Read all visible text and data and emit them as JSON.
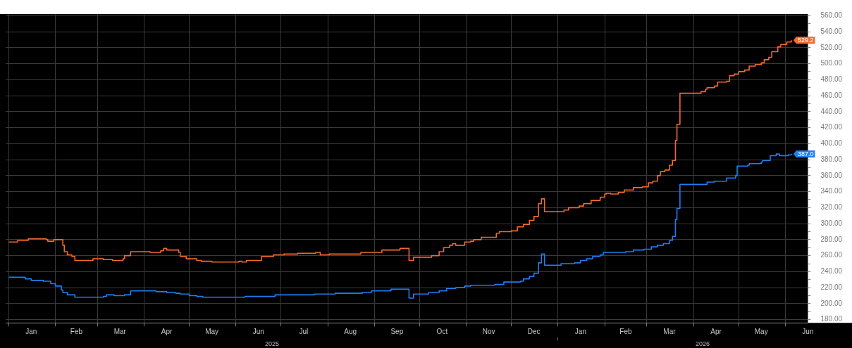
{
  "chart_data": {
    "type": "step",
    "xlim": [
      "2024-12-30",
      "2026-06-16"
    ],
    "xticks": [
      {
        "value": "2025-01-01",
        "label": null
      },
      {
        "value": "2025-01-16",
        "label": "Jan"
      },
      {
        "value": "2025-02-01",
        "label": null
      },
      {
        "value": "2025-02-15",
        "label": "Feb"
      },
      {
        "value": "2025-03-01",
        "label": null
      },
      {
        "value": "2025-03-16",
        "label": "Mar"
      },
      {
        "value": "2025-04-01",
        "label": null
      },
      {
        "value": "2025-04-16",
        "label": "Apr"
      },
      {
        "value": "2025-05-01",
        "label": null
      },
      {
        "value": "2025-05-16",
        "label": "May"
      },
      {
        "value": "2025-06-01",
        "label": null
      },
      {
        "value": "2025-06-16",
        "label": "Jun"
      },
      {
        "value": "2025-07-01",
        "label": null
      },
      {
        "value": "2025-07-16",
        "label": "Jul"
      },
      {
        "value": "2025-08-01",
        "label": null
      },
      {
        "value": "2025-08-16",
        "label": "Aug"
      },
      {
        "value": "2025-09-01",
        "label": null
      },
      {
        "value": "2025-09-16",
        "label": "Sep"
      },
      {
        "value": "2025-10-01",
        "label": null
      },
      {
        "value": "2025-10-16",
        "label": "Oct"
      },
      {
        "value": "2025-11-01",
        "label": null
      },
      {
        "value": "2025-11-16",
        "label": "Nov"
      },
      {
        "value": "2025-12-01",
        "label": null
      },
      {
        "value": "2025-12-16",
        "label": "Dec"
      },
      {
        "value": "2026-01-01",
        "label": null
      },
      {
        "value": "2026-01-16",
        "label": "Jan"
      },
      {
        "value": "2026-02-01",
        "label": null
      },
      {
        "value": "2026-02-15",
        "label": "Feb"
      },
      {
        "value": "2026-03-01",
        "label": null
      },
      {
        "value": "2026-03-16",
        "label": "Mar"
      },
      {
        "value": "2026-04-01",
        "label": null
      },
      {
        "value": "2026-04-16",
        "label": "Apr"
      },
      {
        "value": "2026-05-01",
        "label": null
      },
      {
        "value": "2026-05-16",
        "label": "May"
      },
      {
        "value": "2026-06-01",
        "label": null
      },
      {
        "value": "2026-06-16",
        "label": "Jun"
      }
    ],
    "ylim": [
      176,
      562
    ],
    "yticks": [
      {
        "value": 180,
        "label": "180.00"
      },
      {
        "value": 190,
        "label": null
      },
      {
        "value": 200,
        "label": "200.00"
      },
      {
        "value": 210,
        "label": null
      },
      {
        "value": 220,
        "label": "220.00"
      },
      {
        "value": 230,
        "label": null
      },
      {
        "value": 240,
        "label": "240.00"
      },
      {
        "value": 250,
        "label": null
      },
      {
        "value": 260,
        "label": "260.00"
      },
      {
        "value": 270,
        "label": null
      },
      {
        "value": 280,
        "label": "280.00"
      },
      {
        "value": 290,
        "label": null
      },
      {
        "value": 300,
        "label": "300.00"
      },
      {
        "value": 310,
        "label": null
      },
      {
        "value": 320,
        "label": "320.00"
      },
      {
        "value": 330,
        "label": null
      },
      {
        "value": 340,
        "label": "340.00"
      },
      {
        "value": 350,
        "label": null
      },
      {
        "value": 360,
        "label": "360.00"
      },
      {
        "value": 370,
        "label": null
      },
      {
        "value": 380,
        "label": "380.00"
      },
      {
        "value": 390,
        "label": null
      },
      {
        "value": 400,
        "label": "400.00"
      },
      {
        "value": 410,
        "label": null
      },
      {
        "value": 420,
        "label": "420.00"
      },
      {
        "value": 430,
        "label": null
      },
      {
        "value": 440,
        "label": "440.00"
      },
      {
        "value": 450,
        "label": null
      },
      {
        "value": 460,
        "label": "460.00"
      },
      {
        "value": 470,
        "label": null
      },
      {
        "value": 480,
        "label": "480.00"
      },
      {
        "value": 490,
        "label": null
      },
      {
        "value": 500,
        "label": "500.00"
      },
      {
        "value": 510,
        "label": null
      },
      {
        "value": 520,
        "label": "520.00"
      },
      {
        "value": 530,
        "label": null
      },
      {
        "value": 540,
        "label": "540.00"
      },
      {
        "value": 550,
        "label": null
      },
      {
        "value": 560,
        "label": "560.00"
      }
    ],
    "grid": true,
    "legend": false,
    "x2lim": [
      "2024-12-30",
      "2026-06-16"
    ],
    "x2ticks": [
      {
        "value": "2025-06-25",
        "label": "2025"
      },
      {
        "value": "2026-01-01",
        "label": null
      },
      {
        "value": "2026-04-07",
        "label": "2026"
      }
    ],
    "series": [
      {
        "color": "#f26a2e",
        "x": [
          "2025-01-01",
          "2025-01-07",
          "2025-01-14",
          "2025-01-26",
          "2025-01-27",
          "2025-01-31",
          "2025-02-06",
          "2025-02-07",
          "2025-02-09",
          "2025-02-12",
          "2025-02-14",
          "2025-02-26",
          "2025-03-05",
          "2025-03-11",
          "2025-03-18",
          "2025-03-19",
          "2025-03-23",
          "2025-04-05",
          "2025-04-12",
          "2025-04-14",
          "2025-04-16",
          "2025-04-24",
          "2025-04-25",
          "2025-04-29",
          "2025-05-06",
          "2025-05-09",
          "2025-05-16",
          "2025-06-03",
          "2025-06-05",
          "2025-06-08",
          "2025-06-18",
          "2025-06-26",
          "2025-07-03",
          "2025-07-12",
          "2025-07-24",
          "2025-07-27",
          "2025-08-02",
          "2025-08-23",
          "2025-09-06",
          "2025-09-18",
          "2025-09-24",
          "2025-09-27",
          "2025-10-07",
          "2025-10-09",
          "2025-10-14",
          "2025-10-17",
          "2025-10-21",
          "2025-10-23",
          "2025-10-25",
          "2025-10-31",
          "2025-11-04",
          "2025-11-06",
          "2025-11-11",
          "2025-11-21",
          "2025-11-23",
          "2025-12-01",
          "2025-12-05",
          "2025-12-09",
          "2025-12-13",
          "2025-12-16",
          "2025-12-19",
          "2025-12-21",
          "2025-12-23",
          "2026-01-05",
          "2026-01-08",
          "2026-01-15",
          "2026-01-18",
          "2026-01-23",
          "2026-01-29",
          "2026-02-01",
          "2026-02-02",
          "2026-02-05",
          "2026-02-10",
          "2026-02-14",
          "2026-02-20",
          "2026-02-26",
          "2026-03-02",
          "2026-03-05",
          "2026-03-08",
          "2026-03-10",
          "2026-03-13",
          "2026-03-16",
          "2026-03-18",
          "2026-03-20",
          "2026-03-21",
          "2026-03-23",
          "2026-04-06",
          "2026-04-09",
          "2026-04-10",
          "2026-04-15",
          "2026-04-17",
          "2026-04-23",
          "2026-04-25",
          "2026-04-28",
          "2026-05-01",
          "2026-05-05",
          "2026-05-08",
          "2026-05-12",
          "2026-05-16",
          "2026-05-18",
          "2026-05-21",
          "2026-05-23",
          "2026-05-27",
          "2026-05-29",
          "2026-06-02",
          "2026-06-05"
        ],
        "values": [
          277,
          279,
          281,
          280,
          278,
          280,
          273,
          265,
          261,
          259,
          254,
          256,
          255,
          254,
          256,
          260,
          265,
          264,
          266,
          269,
          267,
          264,
          259,
          256,
          254,
          253,
          252,
          253,
          252,
          254,
          259,
          261,
          262,
          263,
          264,
          261,
          262,
          264,
          267,
          269,
          254,
          258,
          258,
          260,
          265,
          270,
          273,
          275,
          273,
          277,
          278,
          280,
          283,
          288,
          290,
          291,
          296,
          299,
          304,
          309,
          325,
          331,
          315,
          317,
          320,
          322,
          325,
          329,
          333,
          337,
          338,
          337,
          339,
          342,
          345,
          346,
          351,
          353,
          360,
          365,
          367,
          373,
          379,
          404,
          424,
          463,
          465,
          468,
          470,
          472,
          477,
          478,
          485,
          487,
          490,
          492,
          497,
          499,
          501,
          505,
          508,
          515,
          521,
          524,
          527,
          529.2
        ],
        "value_labels": [
          null,
          null,
          null,
          null,
          null,
          null,
          null,
          null,
          null,
          null,
          null,
          null,
          null,
          null,
          null,
          null,
          null,
          null,
          null,
          null,
          null,
          null,
          null,
          null,
          null,
          null,
          null,
          null,
          null,
          null,
          null,
          null,
          null,
          null,
          null,
          null,
          null,
          null,
          null,
          null,
          null,
          null,
          null,
          null,
          null,
          null,
          null,
          null,
          null,
          null,
          null,
          null,
          null,
          null,
          null,
          null,
          null,
          null,
          null,
          null,
          null,
          null,
          null,
          null,
          null,
          null,
          null,
          null,
          null,
          null,
          null,
          null,
          null,
          null,
          null,
          null,
          null,
          null,
          null,
          null,
          null,
          null,
          null,
          null,
          null,
          null,
          null,
          null,
          null,
          null,
          null,
          null,
          null,
          null,
          null,
          null,
          null,
          null,
          null,
          null,
          null,
          null,
          null,
          null,
          null,
          "529.2"
        ]
      },
      {
        "color": "#1f7ff0",
        "x": [
          "2025-01-01",
          "2025-01-12",
          "2025-01-16",
          "2025-01-24",
          "2025-01-29",
          "2025-02-01",
          "2025-02-05",
          "2025-02-06",
          "2025-02-09",
          "2025-02-14",
          "2025-02-27",
          "2025-03-05",
          "2025-03-07",
          "2025-03-12",
          "2025-03-19",
          "2025-03-23",
          "2025-04-09",
          "2025-04-16",
          "2025-04-22",
          "2025-04-25",
          "2025-05-01",
          "2025-05-06",
          "2025-05-10",
          "2025-05-31",
          "2025-06-07",
          "2025-06-14",
          "2025-06-27",
          "2025-07-23",
          "2025-08-06",
          "2025-08-24",
          "2025-08-30",
          "2025-09-06",
          "2025-09-12",
          "2025-09-23",
          "2025-09-24",
          "2025-09-27",
          "2025-10-07",
          "2025-10-14",
          "2025-10-19",
          "2025-10-25",
          "2025-10-31",
          "2025-11-04",
          "2025-11-20",
          "2025-11-26",
          "2025-12-07",
          "2025-12-09",
          "2025-12-13",
          "2025-12-16",
          "2025-12-19",
          "2025-12-21",
          "2025-12-23",
          "2026-01-03",
          "2026-01-12",
          "2026-01-16",
          "2026-01-20",
          "2026-01-24",
          "2026-01-29",
          "2026-01-31",
          "2026-02-15",
          "2026-02-20",
          "2026-02-27",
          "2026-03-04",
          "2026-03-08",
          "2026-03-12",
          "2026-03-16",
          "2026-03-18",
          "2026-03-20",
          "2026-03-21",
          "2026-03-23",
          "2026-04-10",
          "2026-04-15",
          "2026-04-23",
          "2026-04-29",
          "2026-04-30",
          "2026-05-07",
          "2026-05-08",
          "2026-05-16",
          "2026-05-17",
          "2026-05-22",
          "2026-05-26",
          "2026-05-28",
          "2026-06-03",
          "2026-06-05"
        ],
        "values": [
          233,
          231,
          229,
          228,
          225,
          222,
          217,
          214,
          211,
          208,
          208,
          209,
          211,
          210,
          211,
          216,
          215,
          214,
          213,
          212,
          210,
          209,
          208,
          208,
          209,
          209,
          211,
          212,
          213,
          214,
          216,
          216,
          218,
          218,
          207,
          212,
          214,
          216,
          219,
          220,
          222,
          223,
          224,
          227,
          228,
          231,
          234,
          238,
          251,
          262,
          248,
          250,
          251,
          254,
          256,
          259,
          261,
          264,
          265,
          267,
          268,
          271,
          273,
          275,
          279,
          284,
          305,
          319,
          349,
          352,
          353,
          357,
          360,
          372,
          373,
          375,
          377,
          379,
          385,
          387,
          385,
          386,
          387.0
        ],
        "value_labels": [
          null,
          null,
          null,
          null,
          null,
          null,
          null,
          null,
          null,
          null,
          null,
          null,
          null,
          null,
          null,
          null,
          null,
          null,
          null,
          null,
          null,
          null,
          null,
          null,
          null,
          null,
          null,
          null,
          null,
          null,
          null,
          null,
          null,
          null,
          null,
          null,
          null,
          null,
          null,
          null,
          null,
          null,
          null,
          null,
          null,
          null,
          null,
          null,
          null,
          null,
          null,
          null,
          null,
          null,
          null,
          null,
          null,
          null,
          null,
          null,
          null,
          null,
          null,
          null,
          null,
          null,
          null,
          null,
          null,
          null,
          null,
          null,
          null,
          null,
          null,
          null,
          null,
          null,
          null,
          null,
          null,
          null,
          "387.0"
        ]
      }
    ]
  }
}
